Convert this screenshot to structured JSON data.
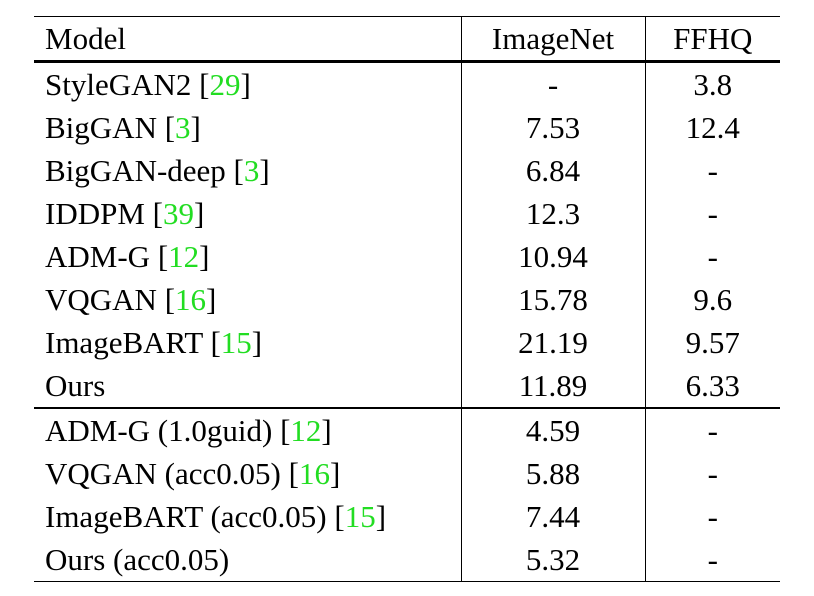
{
  "table": {
    "headers": {
      "model": "Model",
      "imagenet": "ImageNet",
      "ffhq": "FFHQ"
    },
    "group1": [
      {
        "name": "StyleGAN2",
        "cite": "29",
        "imagenet": "-",
        "ffhq": "3.8"
      },
      {
        "name": "BigGAN",
        "cite": "3",
        "imagenet": "7.53",
        "ffhq": "12.4"
      },
      {
        "name": "BigGAN-deep",
        "cite": "3",
        "imagenet": "6.84",
        "ffhq": "-"
      },
      {
        "name": "IDDPM",
        "cite": "39",
        "imagenet": "12.3",
        "ffhq": "-"
      },
      {
        "name": "ADM-G",
        "cite": "12",
        "imagenet": "10.94",
        "ffhq": "-"
      },
      {
        "name": "VQGAN",
        "cite": "16",
        "imagenet": "15.78",
        "ffhq": "9.6"
      },
      {
        "name": "ImageBART",
        "cite": "15",
        "imagenet": "21.19",
        "ffhq": "9.57"
      },
      {
        "name": "Ours",
        "cite": "",
        "imagenet": "11.89",
        "ffhq": "6.33"
      }
    ],
    "group2": [
      {
        "name": "ADM-G (1.0guid)",
        "cite": "12",
        "imagenet": "4.59",
        "ffhq": "-"
      },
      {
        "name": "VQGAN (acc0.05)",
        "cite": "16",
        "imagenet": "5.88",
        "ffhq": "-"
      },
      {
        "name": "ImageBART (acc0.05)",
        "cite": "15",
        "imagenet": "7.44",
        "ffhq": "-"
      },
      {
        "name": "Ours (acc0.05)",
        "cite": "",
        "imagenet": "5.32",
        "ffhq": "-"
      }
    ]
  },
  "colors": {
    "citation": "#22dd22",
    "text": "#000000",
    "background": "#ffffff"
  }
}
